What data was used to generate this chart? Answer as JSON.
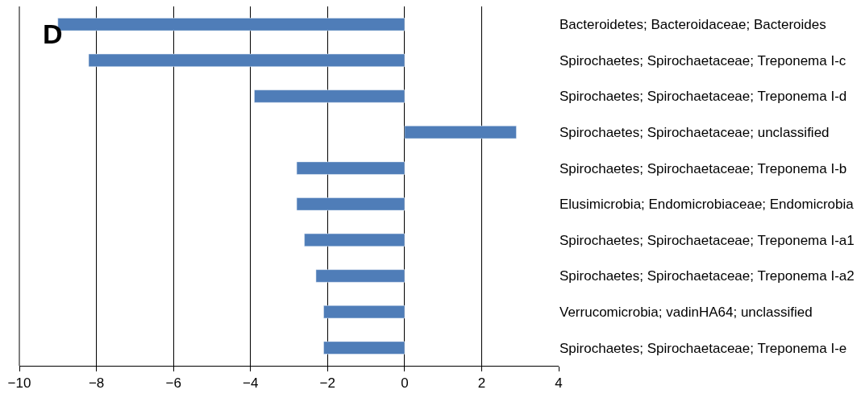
{
  "chart_data": {
    "type": "bar",
    "orientation": "horizontal",
    "categories": [
      "Bacteroidetes; Bacteroidaceae; Bacteroides",
      "Spirochaetes; Spirochaetaceae; Treponema I-c",
      "Spirochaetes; Spirochaetaceae; Treponema I-d",
      "Spirochaetes; Spirochaetaceae; unclassified",
      "Spirochaetes; Spirochaetaceae; Treponema I-b",
      "Elusimicrobia; Endomicrobiaceae; Endomicrobia",
      "Spirochaetes; Spirochaetaceae; Treponema I-a1",
      "Spirochaetes; Spirochaetaceae; Treponema I-a2",
      "Verrucomicrobia; vadinHA64; unclassified",
      "Spirochaetes; Spirochaetaceae; Treponema I-e"
    ],
    "values": [
      -9.0,
      -8.2,
      -3.9,
      2.9,
      -2.8,
      -2.8,
      -2.6,
      -2.3,
      -2.1,
      -2.1
    ],
    "color": "#4f7db8",
    "xlim": [
      -10,
      4
    ],
    "xticks": [
      {
        "value": -10,
        "label": "−10"
      },
      {
        "value": -8,
        "label": "−8"
      },
      {
        "value": -6,
        "label": "−6"
      },
      {
        "value": -4,
        "label": "−4"
      },
      {
        "value": -2,
        "label": "−2"
      },
      0,
      2,
      4
    ],
    "grid": "x",
    "annotations": [
      "D"
    ]
  }
}
